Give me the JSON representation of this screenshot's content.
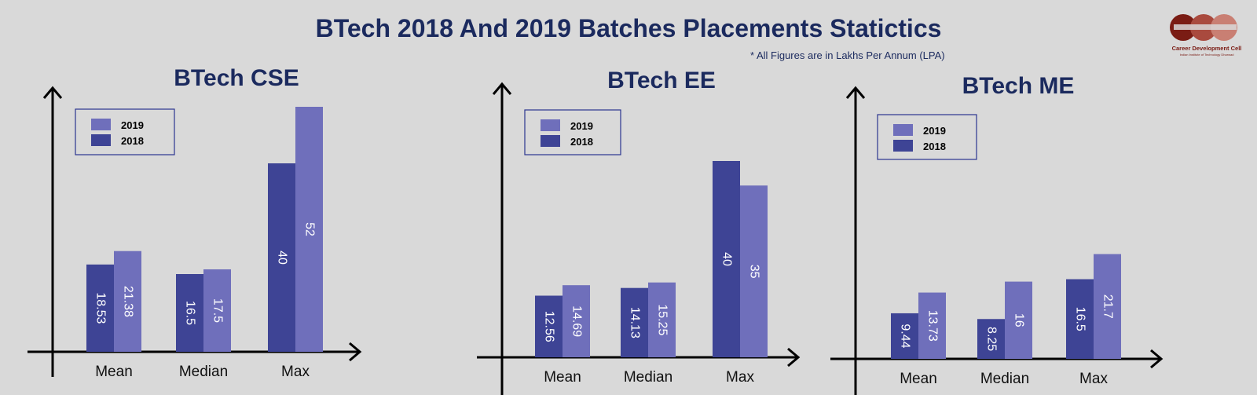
{
  "title": "BTech 2018 And 2019 Batches Placements Statictics",
  "note": "* All Figures are in Lakhs Per Annum (LPA)",
  "logo": {
    "line1": "Career Development Cell",
    "line2": "Indian Institute of Technology Dharwad"
  },
  "colors": {
    "series_2018": "#3e4495",
    "series_2019": "#6f6fbb",
    "title": "#1b2a5e",
    "background": "#d9d9d9",
    "logo": "#7a1c14"
  },
  "chart_data": [
    {
      "type": "bar",
      "title": "BTech CSE",
      "categories": [
        "Mean",
        "Median",
        "Max"
      ],
      "series": [
        {
          "name": "2018",
          "values": [
            18.53,
            16.5,
            40
          ]
        },
        {
          "name": "2019",
          "values": [
            21.38,
            17.5,
            52
          ]
        }
      ],
      "legend": "top-left",
      "grid": false
    },
    {
      "type": "bar",
      "title": "BTech EE",
      "categories": [
        "Mean",
        "Median",
        "Max"
      ],
      "series": [
        {
          "name": "2018",
          "values": [
            12.56,
            14.13,
            40
          ]
        },
        {
          "name": "2019",
          "values": [
            14.69,
            15.25,
            35
          ]
        }
      ],
      "legend": "top-left",
      "grid": false
    },
    {
      "type": "bar",
      "title": "BTech ME",
      "categories": [
        "Mean",
        "Median",
        "Max"
      ],
      "series": [
        {
          "name": "2018",
          "values": [
            9.44,
            8.25,
            16.5
          ]
        },
        {
          "name": "2019",
          "values": [
            13.73,
            16,
            21.7
          ]
        }
      ],
      "legend": "top-left",
      "grid": false
    }
  ]
}
